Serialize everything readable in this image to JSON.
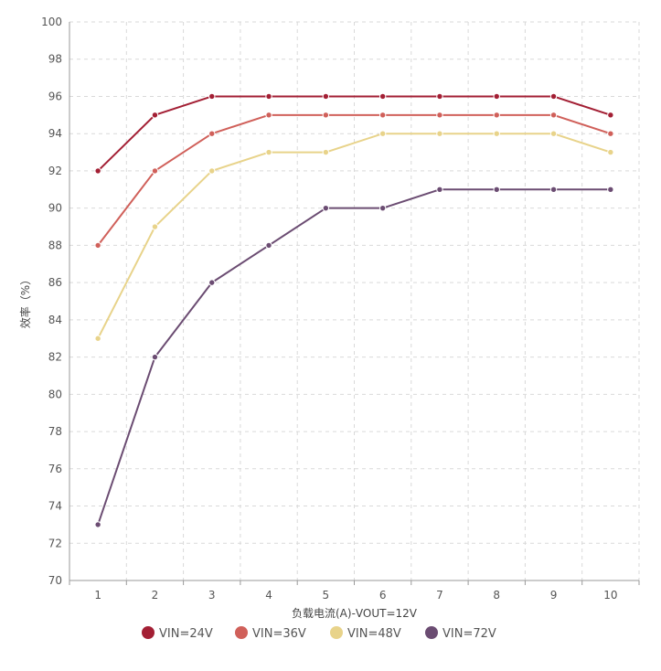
{
  "chart_data": {
    "type": "line",
    "x": [
      1,
      2,
      3,
      4,
      5,
      6,
      7,
      8,
      9,
      10
    ],
    "xlabel": "负载电流(A)-VOUT=12V",
    "ylabel": "效率（%）",
    "ylim": [
      70,
      100
    ],
    "ytick_step": 2,
    "yticks": [
      "70",
      "72",
      "74",
      "76",
      "78",
      "80",
      "82",
      "84",
      "86",
      "88",
      "90",
      "92",
      "94",
      "96",
      "98",
      "100"
    ],
    "xticks": [
      "1",
      "2",
      "3",
      "4",
      "5",
      "6",
      "7",
      "8",
      "9",
      "10"
    ],
    "grid": true,
    "legend_position": "bottom",
    "series": [
      {
        "name": "VIN=24V",
        "color": "#a31f34",
        "values": [
          92,
          95,
          96,
          96,
          96,
          96,
          96,
          96,
          96,
          95
        ]
      },
      {
        "name": "VIN=36V",
        "color": "#d0605a",
        "values": [
          88,
          92,
          94,
          95,
          95,
          95,
          95,
          95,
          95,
          94
        ]
      },
      {
        "name": "VIN=48V",
        "color": "#e8d38a",
        "values": [
          83,
          89,
          92,
          93,
          93,
          94,
          94,
          94,
          94,
          93
        ]
      },
      {
        "name": "VIN=72V",
        "color": "#6b4c72",
        "values": [
          73,
          82,
          86,
          88,
          90,
          90,
          91,
          91,
          91,
          91
        ]
      }
    ]
  }
}
